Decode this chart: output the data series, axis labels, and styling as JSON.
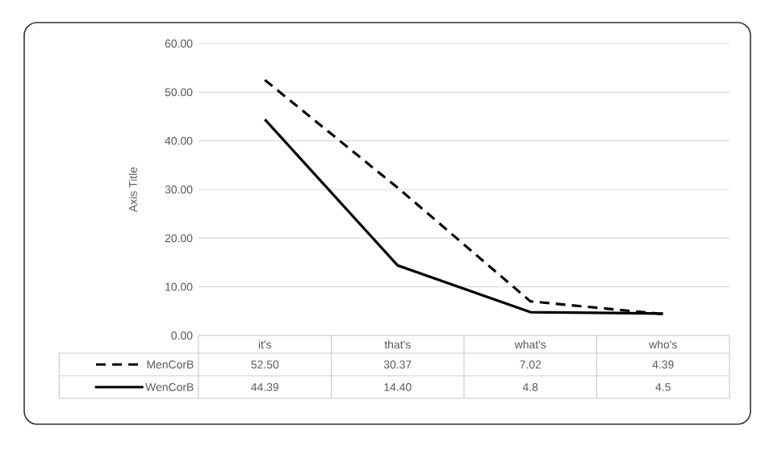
{
  "chart_data": {
    "type": "line",
    "ylabel": "Axis Title",
    "categories": [
      "it's",
      "that's",
      "what's",
      "who's"
    ],
    "ylim": [
      0,
      60
    ],
    "yticks": [
      {
        "value": 0,
        "label": "0.00"
      },
      {
        "value": 10,
        "label": "10.00"
      },
      {
        "value": 20,
        "label": "20.00"
      },
      {
        "value": 30,
        "label": "30.00"
      },
      {
        "value": 40,
        "label": "40.00"
      },
      {
        "value": 50,
        "label": "50.00"
      },
      {
        "value": 60,
        "label": "60.00"
      }
    ],
    "grid": "y",
    "legend": "bottom",
    "marker": "none",
    "series": [
      {
        "name": "MenCorB",
        "color": "#000000",
        "line_style": "dashed",
        "values": [
          52.5,
          30.37,
          7.02,
          4.39
        ],
        "value_labels": [
          "52.50",
          "30.37",
          "7.02",
          "4.39"
        ]
      },
      {
        "name": "WenCorB",
        "color": "#000000",
        "line_style": "solid",
        "values": [
          44.39,
          14.4,
          4.8,
          4.5
        ],
        "value_labels": [
          "44.39",
          "14.40",
          "4.8",
          "4.5"
        ]
      }
    ]
  }
}
